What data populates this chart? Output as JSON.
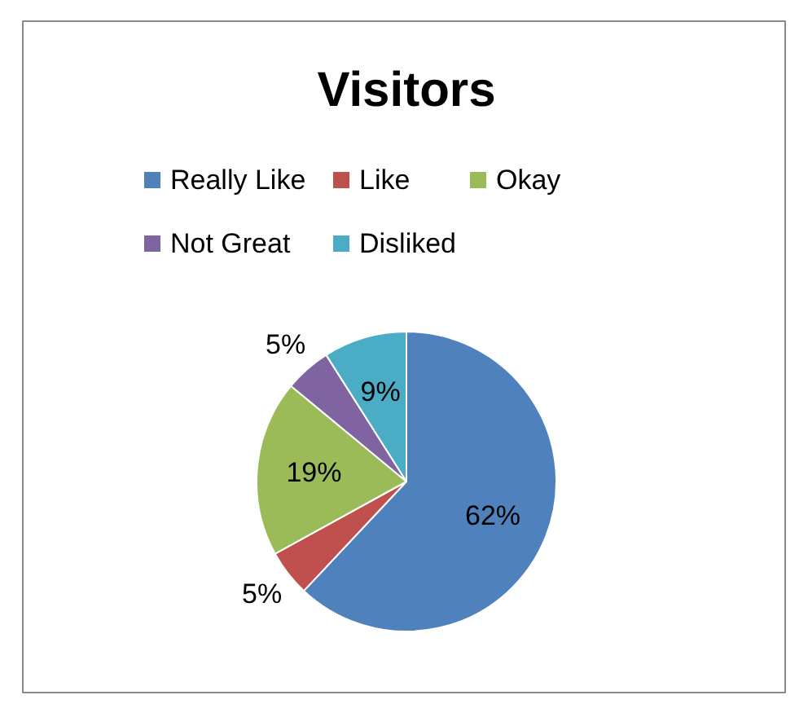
{
  "chart_data": {
    "type": "pie",
    "title": "Visitors",
    "categories": [
      "Really Like",
      "Like",
      "Okay",
      "Not Great",
      "Disliked"
    ],
    "values": [
      62,
      5,
      19,
      5,
      9
    ],
    "colors": [
      "#4f81bd",
      "#c0504d",
      "#9bbb59",
      "#8064a2",
      "#4bacc6"
    ],
    "value_labels": [
      "62%",
      "5%",
      "19%",
      "5%",
      "9%"
    ],
    "legend": "top"
  }
}
